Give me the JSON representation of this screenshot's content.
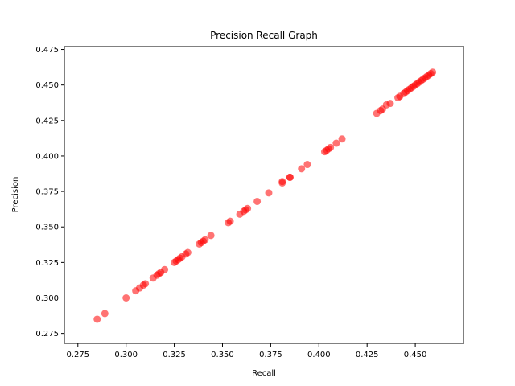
{
  "chart_data": {
    "type": "scatter",
    "title": "Precision Recall Graph",
    "xlabel": "Recall",
    "ylabel": "Precision",
    "xlim": [
      0.268,
      0.475
    ],
    "ylim": [
      0.268,
      0.477
    ],
    "xticks": [
      0.275,
      0.3,
      0.325,
      0.35,
      0.375,
      0.4,
      0.425,
      0.45
    ],
    "xtick_labels": [
      "0.275",
      "0.300",
      "0.325",
      "0.350",
      "0.375",
      "0.400",
      "0.425",
      "0.450"
    ],
    "yticks": [
      0.275,
      0.3,
      0.325,
      0.35,
      0.375,
      0.4,
      0.425,
      0.45,
      0.475
    ],
    "ytick_labels": [
      "0.275",
      "0.300",
      "0.325",
      "0.350",
      "0.375",
      "0.400",
      "0.425",
      "0.450",
      "0.475"
    ],
    "grid": false,
    "legend": "none",
    "marker_color": "#ff0000",
    "marker_opacity": 0.55,
    "series": [
      {
        "points": [
          [
            0.285,
            0.285
          ],
          [
            0.289,
            0.289
          ],
          [
            0.3,
            0.3
          ],
          [
            0.305,
            0.305
          ],
          [
            0.307,
            0.307
          ],
          [
            0.309,
            0.309
          ],
          [
            0.31,
            0.31
          ],
          [
            0.314,
            0.314
          ],
          [
            0.316,
            0.316
          ],
          [
            0.317,
            0.317
          ],
          [
            0.318,
            0.318
          ],
          [
            0.32,
            0.32
          ],
          [
            0.325,
            0.325
          ],
          [
            0.326,
            0.326
          ],
          [
            0.327,
            0.327
          ],
          [
            0.328,
            0.328
          ],
          [
            0.329,
            0.329
          ],
          [
            0.331,
            0.331
          ],
          [
            0.332,
            0.332
          ],
          [
            0.338,
            0.338
          ],
          [
            0.339,
            0.339
          ],
          [
            0.34,
            0.34
          ],
          [
            0.341,
            0.341
          ],
          [
            0.344,
            0.344
          ],
          [
            0.353,
            0.353
          ],
          [
            0.354,
            0.354
          ],
          [
            0.359,
            0.359
          ],
          [
            0.361,
            0.361
          ],
          [
            0.362,
            0.362
          ],
          [
            0.363,
            0.363
          ],
          [
            0.368,
            0.368
          ],
          [
            0.374,
            0.374
          ],
          [
            0.381,
            0.381
          ],
          [
            0.381,
            0.382
          ],
          [
            0.385,
            0.385
          ],
          [
            0.385,
            0.385
          ],
          [
            0.391,
            0.391
          ],
          [
            0.394,
            0.394
          ],
          [
            0.403,
            0.403
          ],
          [
            0.404,
            0.404
          ],
          [
            0.405,
            0.405
          ],
          [
            0.406,
            0.406
          ],
          [
            0.409,
            0.409
          ],
          [
            0.412,
            0.412
          ],
          [
            0.43,
            0.43
          ],
          [
            0.432,
            0.432
          ],
          [
            0.433,
            0.433
          ],
          [
            0.435,
            0.436
          ],
          [
            0.437,
            0.437
          ],
          [
            0.441,
            0.441
          ],
          [
            0.442,
            0.442
          ],
          [
            0.444,
            0.444
          ],
          [
            0.445,
            0.445
          ],
          [
            0.446,
            0.446
          ],
          [
            0.447,
            0.447
          ],
          [
            0.448,
            0.448
          ],
          [
            0.449,
            0.449
          ],
          [
            0.45,
            0.45
          ],
          [
            0.451,
            0.451
          ],
          [
            0.452,
            0.452
          ],
          [
            0.453,
            0.453
          ],
          [
            0.454,
            0.454
          ],
          [
            0.455,
            0.455
          ],
          [
            0.456,
            0.456
          ],
          [
            0.457,
            0.457
          ],
          [
            0.458,
            0.458
          ],
          [
            0.459,
            0.459
          ]
        ]
      }
    ]
  }
}
